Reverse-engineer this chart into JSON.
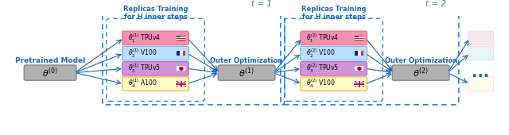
{
  "bg_color": "#ffffff",
  "blue": "#1565C0",
  "light_blue_dash": "#4FC3F7",
  "box_gray": "#b0b0b0",
  "box_colors": [
    "#F48FB1",
    "#BBDEFB",
    "#CE93D8",
    "#FFF9C4"
  ],
  "box_colors2": [
    "#F48FB1",
    "#BBDEFB",
    "#CE93D8",
    "#FFF9C4"
  ],
  "box_colors_faded": [
    "#fce4ec",
    "#e3f2fd",
    "#f3e5f5",
    "#fffde7"
  ],
  "replica_labels_t1": [
    "θ₁⁽¹⁾ TPUv4",
    "θ₂⁽¹⁾ V100",
    "θ₃⁽¹⁾ TPUv5",
    "θ₄⁽¹⁾ A100"
  ],
  "replica_labels_t2": [
    "θ₁⁽²⁾ TPUv4",
    "θ₂⁽²⁾ V100",
    "θ₃⁽²⁾ TPUv5",
    "θ₄⁽²⁾ V100"
  ],
  "pretrained_label": "Pretrained Model",
  "theta0": "θ⁽⁰⁾",
  "theta1": "θ⁽¹⁾",
  "theta2": "θ⁽²⁾",
  "outer_opt": "Outer Optimization",
  "t1_label": "t = 1",
  "t2_label": "t = 2",
  "replica_title": "Replicas Training\nfor H inner steps"
}
